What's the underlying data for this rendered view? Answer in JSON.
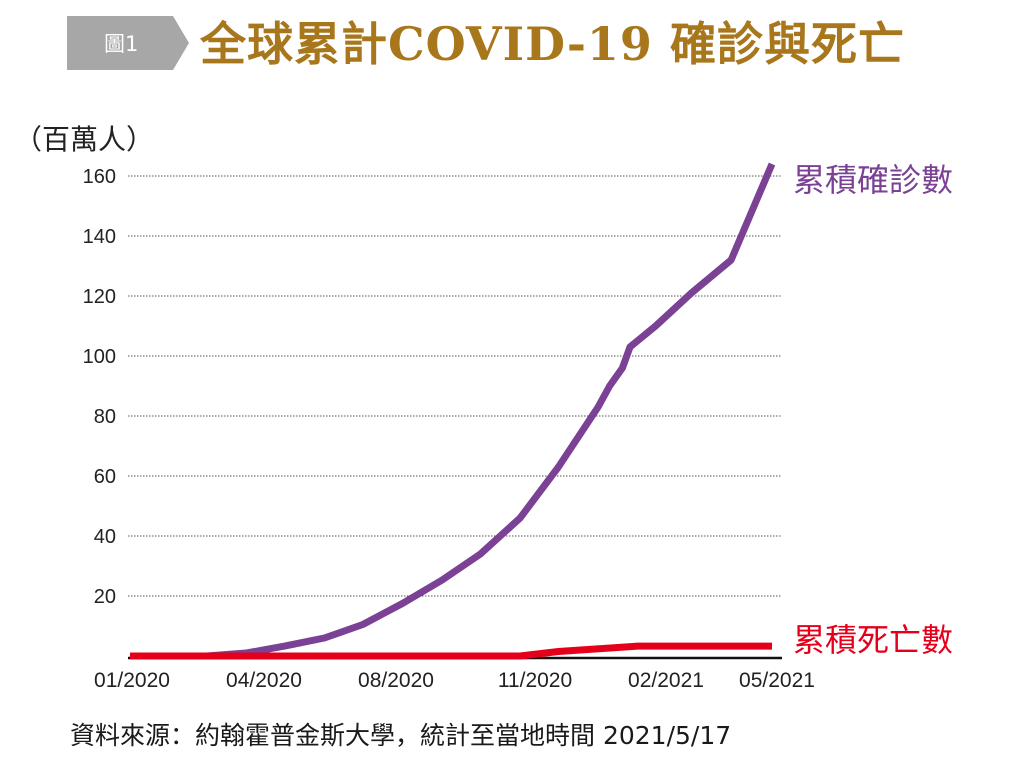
{
  "header": {
    "badge": "圖1",
    "title": "全球累計COVID-19 確診與死亡"
  },
  "colors": {
    "badge": "#a7a7a7",
    "title": "#a8771c",
    "confirmed": "#7a4195",
    "deaths": "#e4001b"
  },
  "chart_data": {
    "type": "line",
    "title": "全球累計COVID-19 確診與死亡",
    "ylabel": "（百萬人）",
    "xlabel": "",
    "ylim": [
      0,
      160
    ],
    "yticks": [
      20,
      40,
      60,
      80,
      100,
      120,
      140,
      160
    ],
    "x_tick_labels": [
      "01/2020",
      "04/2020",
      "08/2020",
      "11/2020",
      "02/2021",
      "05/2021"
    ],
    "grid": "horizontal dotted",
    "legend": "inline labels at right end of each line",
    "series": [
      {
        "name": "累積確診數",
        "points": [
          [
            "2020-01-01",
            0
          ],
          [
            "2020-01-31",
            0
          ],
          [
            "2020-03-01",
            0
          ],
          [
            "2020-04-01",
            1
          ],
          [
            "2020-05-01",
            3.3
          ],
          [
            "2020-06-01",
            6
          ],
          [
            "2020-07-01",
            10.5
          ],
          [
            "2020-08-01",
            17.5
          ],
          [
            "2020-09-01",
            25.3
          ],
          [
            "2020-10-01",
            34
          ],
          [
            "2020-11-01",
            46
          ],
          [
            "2020-12-01",
            63
          ],
          [
            "2021-01-01",
            83
          ],
          [
            "2021-01-10",
            90
          ],
          [
            "2021-01-20",
            96
          ],
          [
            "2021-01-26",
            103
          ],
          [
            "2021-02-15",
            110
          ],
          [
            "2021-03-15",
            121
          ],
          [
            "2021-04-15",
            132
          ],
          [
            "2021-05-17",
            164
          ]
        ]
      },
      {
        "name": "累積死亡數",
        "points": [
          [
            "2020-01-01",
            0
          ],
          [
            "2020-11-01",
            0
          ],
          [
            "2020-12-01",
            1.5
          ],
          [
            "2021-02-01",
            3.3
          ],
          [
            "2021-05-17",
            3.3
          ]
        ]
      }
    ]
  },
  "source_note": "資料來源：約翰霍普金斯大學，統計至當地時間 2021/5/17"
}
